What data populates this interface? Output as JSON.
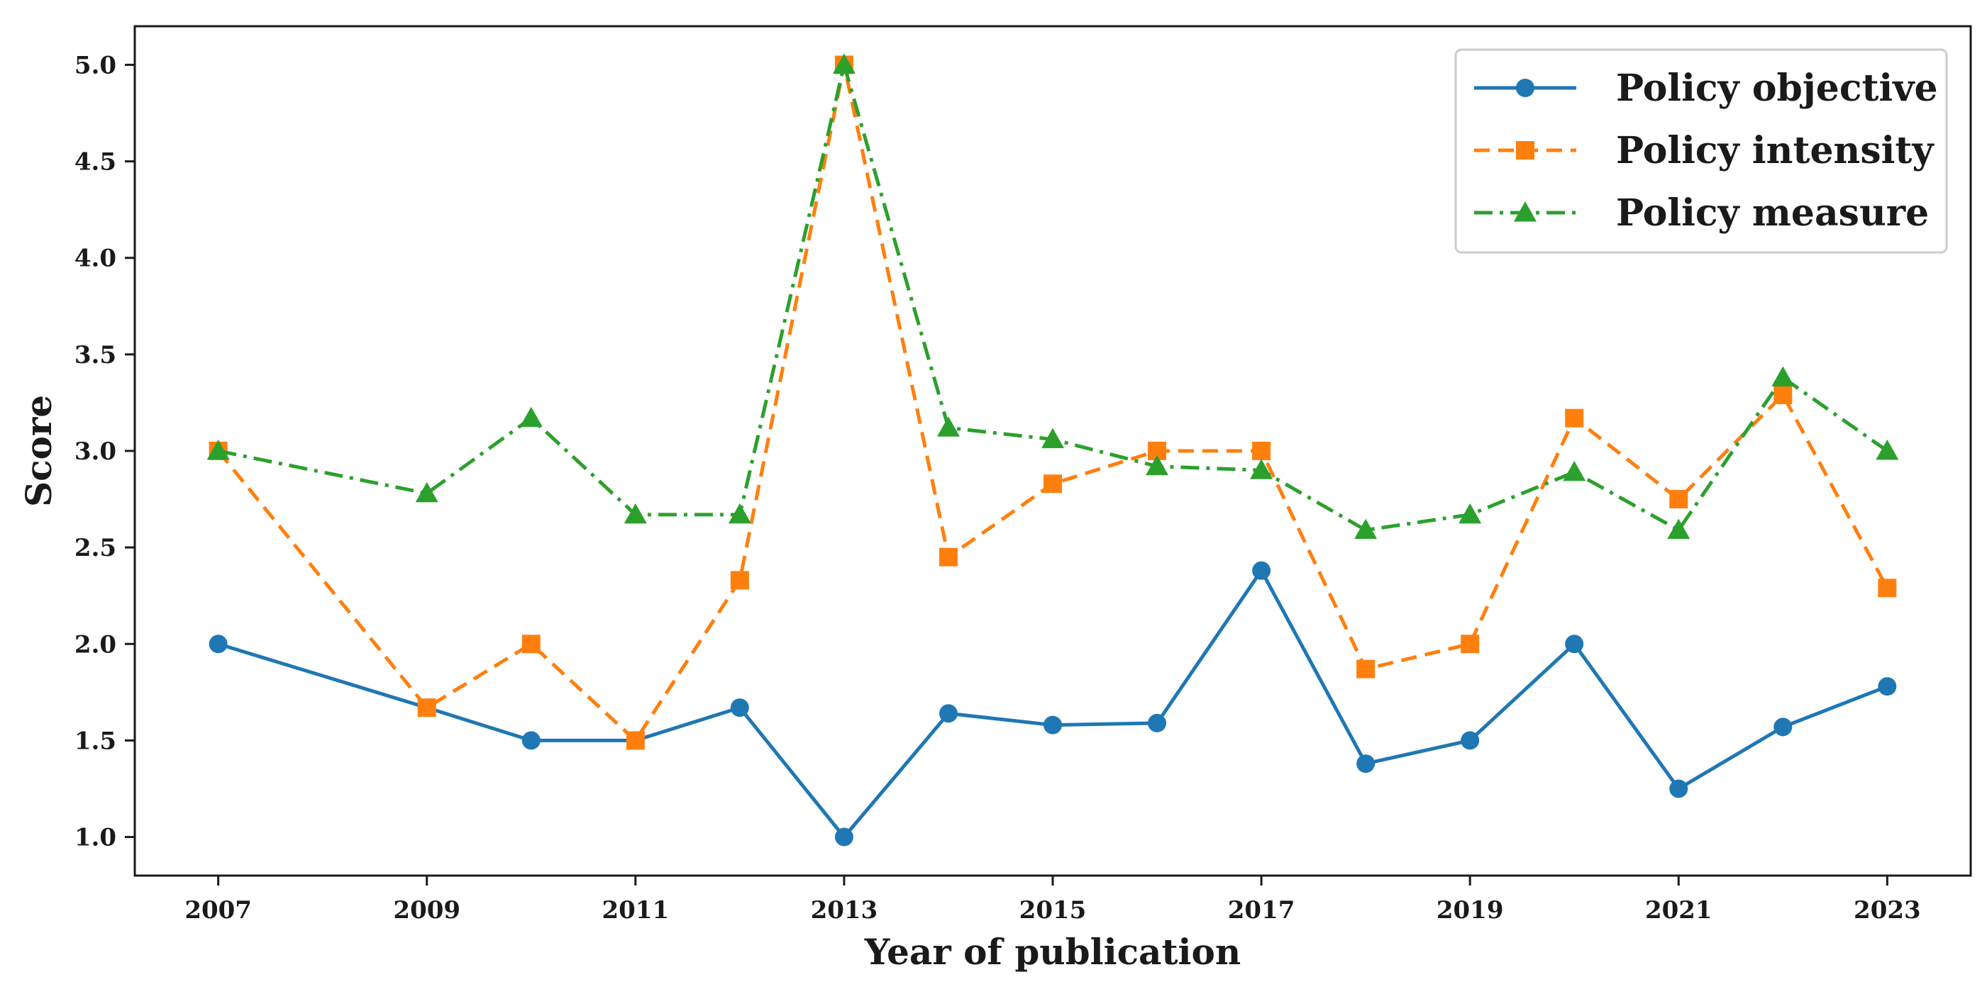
{
  "chart_data": {
    "type": "line",
    "title": "",
    "xlabel": "Year of publication",
    "ylabel": "Score",
    "x": [
      2007,
      2009,
      2010,
      2011,
      2012,
      2013,
      2014,
      2015,
      2016,
      2017,
      2018,
      2019,
      2020,
      2021,
      2022,
      2023
    ],
    "xticks": [
      2007,
      2009,
      2011,
      2013,
      2015,
      2017,
      2019,
      2021,
      2023
    ],
    "xtick_labels": [
      "2007",
      "2009",
      "2011",
      "2013",
      "2015",
      "2017",
      "2019",
      "2021",
      "2023"
    ],
    "yticks": [
      1.0,
      1.5,
      2.0,
      2.5,
      3.0,
      3.5,
      4.0,
      4.5,
      5.0
    ],
    "ytick_labels": [
      "1.0",
      "1.5",
      "2.0",
      "2.5",
      "3.0",
      "3.5",
      "4.0",
      "4.5",
      "5.0"
    ],
    "xlim": [
      2006.2,
      2023.8
    ],
    "ylim": [
      0.8,
      5.2
    ],
    "grid": false,
    "legend_position": "top-right",
    "series": [
      {
        "name": "Policy objective",
        "color": "#1f77b4",
        "linestyle": "solid",
        "marker": "circle",
        "values": [
          2.0,
          1.67,
          1.5,
          1.5,
          1.67,
          1.0,
          1.64,
          1.58,
          1.59,
          2.38,
          1.38,
          1.5,
          2.0,
          1.25,
          1.57,
          1.78
        ]
      },
      {
        "name": "Policy intensity",
        "color": "#ff7f0e",
        "linestyle": "dashed",
        "marker": "square",
        "values": [
          3.0,
          1.67,
          2.0,
          1.5,
          2.33,
          5.0,
          2.45,
          2.83,
          3.0,
          3.0,
          1.87,
          2.0,
          3.17,
          2.75,
          3.29,
          2.29
        ]
      },
      {
        "name": "Policy measure",
        "color": "#2ca02c",
        "linestyle": "dashdot",
        "marker": "triangle",
        "values": [
          3.0,
          2.78,
          3.17,
          2.67,
          2.67,
          5.0,
          3.12,
          3.06,
          2.92,
          2.9,
          2.59,
          2.67,
          2.89,
          2.59,
          3.38,
          3.0
        ]
      }
    ]
  }
}
